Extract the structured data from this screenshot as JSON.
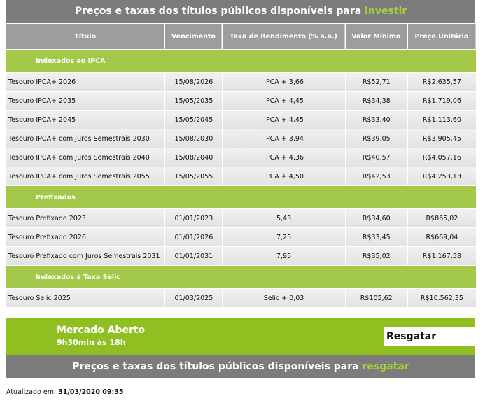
{
  "header": {
    "title": "Preços e taxas dos títulos públicos disponíveis para ",
    "highlight": "investir"
  },
  "table": {
    "columns": [
      "Título",
      "Vencimento",
      "Taxa de Rendimento (% a.a.)",
      "Valor Mínimo",
      "Preço Unitário"
    ],
    "sections": [
      {
        "label": "Indexados ao IPCA",
        "rows": [
          [
            "Tesouro IPCA+ 2026",
            "15/08/2026",
            "IPCA + 3,66",
            "R$52,71",
            "R$2.635,57"
          ],
          [
            "Tesouro IPCA+ 2035",
            "15/05/2035",
            "IPCA + 4,45",
            "R$34,38",
            "R$1.719,06"
          ],
          [
            "Tesouro IPCA+ 2045",
            "15/05/2045",
            "IPCA + 4,45",
            "R$33,40",
            "R$1.113,60"
          ],
          [
            "Tesouro IPCA+ com Juros Semestrais 2030",
            "15/08/2030",
            "IPCA + 3,94",
            "R$39,05",
            "R$3.905,45"
          ],
          [
            "Tesouro IPCA+ com Juros Semestrais 2040",
            "15/08/2040",
            "IPCA + 4,36",
            "R$40,57",
            "R$4.057,16"
          ],
          [
            "Tesouro IPCA+ com Juros Semestrais 2055",
            "15/05/2055",
            "IPCA + 4,50",
            "R$42,53",
            "R$4.253,13"
          ]
        ]
      },
      {
        "label": "Prefixados",
        "rows": [
          [
            "Tesouro Prefixado 2023",
            "01/01/2023",
            "5,43",
            "R$34,60",
            "R$865,02"
          ],
          [
            "Tesouro Prefixado 2026",
            "01/01/2026",
            "7,25",
            "R$33,45",
            "R$669,04"
          ],
          [
            "Tesouro Prefixado com Juros Semestrais 2031",
            "01/01/2031",
            "7,95",
            "R$35,02",
            "R$1.167,58"
          ]
        ]
      },
      {
        "label": "Indexados à Taxa Selic",
        "rows": [
          [
            "Tesouro Selic 2025",
            "01/03/2025",
            "Selic + 0,03",
            "R$105,62",
            "R$10.562,35"
          ]
        ]
      }
    ]
  },
  "market": {
    "title": "Mercado Aberto",
    "hours": "9h30min às 18h",
    "button": "Resgatar"
  },
  "footer_bar": {
    "title": "Preços e taxas dos títulos públicos disponíveis para ",
    "highlight": "resgatar"
  },
  "updated": {
    "label": "Atualizado em: ",
    "value": "31/03/2020 09:35"
  }
}
